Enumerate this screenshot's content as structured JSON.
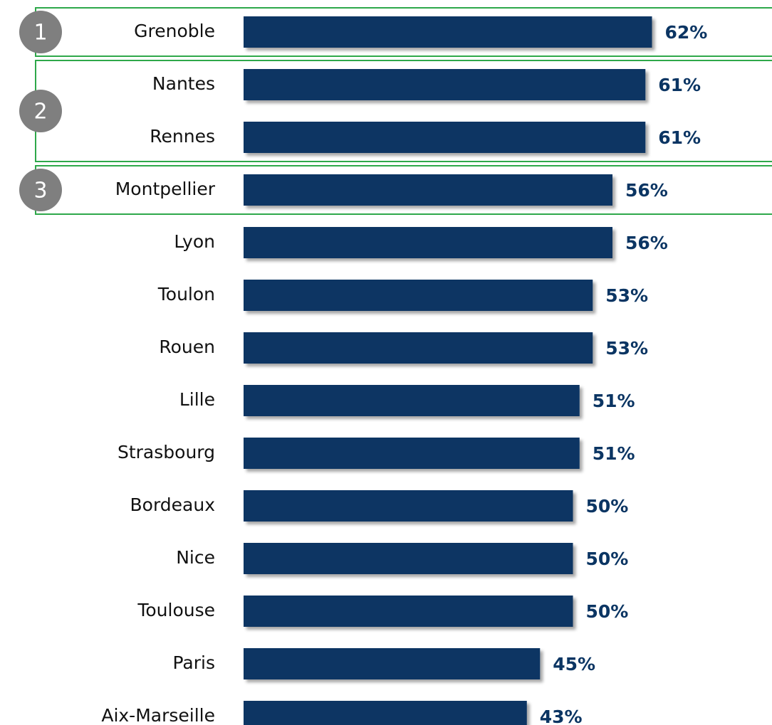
{
  "chart_data": {
    "type": "bar",
    "orientation": "horizontal",
    "categories": [
      "Grenoble",
      "Nantes",
      "Rennes",
      "Montpellier",
      "Lyon",
      "Toulon",
      "Rouen",
      "Lille",
      "Strasbourg",
      "Bordeaux",
      "Nice",
      "Toulouse",
      "Paris",
      "Aix-Marseille"
    ],
    "values": [
      62,
      61,
      61,
      56,
      56,
      53,
      53,
      51,
      51,
      50,
      50,
      50,
      45,
      43
    ],
    "value_labels": [
      "62%",
      "61%",
      "61%",
      "56%",
      "56%",
      "53%",
      "53%",
      "51%",
      "51%",
      "50%",
      "50%",
      "50%",
      "45%",
      "43%"
    ],
    "color": "#0b3563",
    "annotations": [
      {
        "text": "1",
        "categories": [
          "Grenoble"
        ]
      },
      {
        "text": "2",
        "categories": [
          "Nantes",
          "Rennes"
        ]
      },
      {
        "text": "3",
        "categories": [
          "Montpellier"
        ]
      }
    ],
    "annotation_color": "#2ea84a"
  }
}
